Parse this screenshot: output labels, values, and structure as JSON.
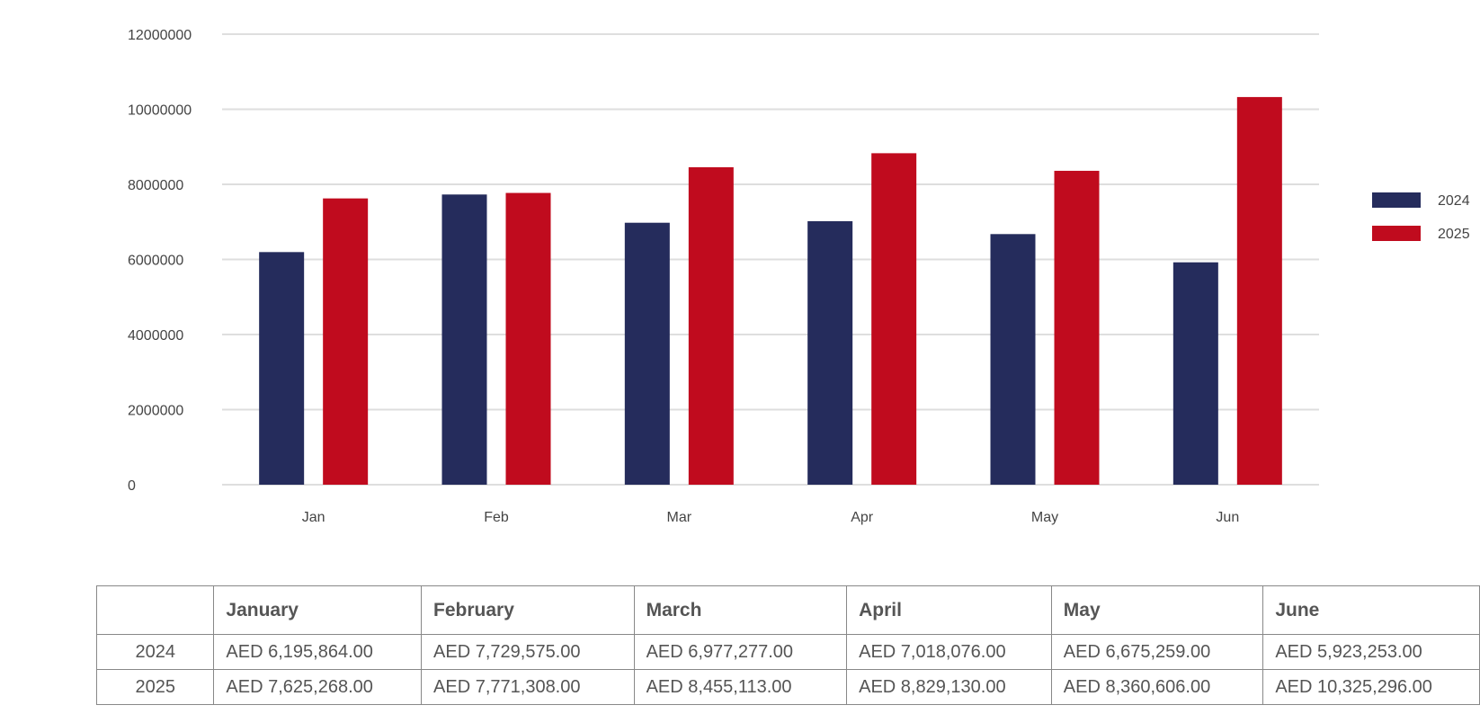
{
  "chart_data": {
    "type": "bar",
    "categories": [
      "Jan",
      "Feb",
      "Mar",
      "Apr",
      "May",
      "Jun"
    ],
    "series": [
      {
        "name": "2024",
        "color": "#252c5c",
        "values": [
          6195864,
          7729575,
          6977277,
          7018076,
          6675259,
          5923253
        ]
      },
      {
        "name": "2025",
        "color": "#c00b1e",
        "values": [
          7625268,
          7771308,
          8455113,
          8829130,
          8360606,
          10325296
        ]
      }
    ],
    "ylim": [
      0,
      12000000
    ],
    "yticks": [
      "0",
      "2000000",
      "4000000",
      "6000000",
      "8000000",
      "10000000",
      "12000000"
    ],
    "grid": true,
    "legend_position": "right",
    "title": "",
    "xlabel": "",
    "ylabel": ""
  },
  "table": {
    "corner": "",
    "headers": [
      "January",
      "February",
      "March",
      "April",
      "May",
      "June"
    ],
    "rows": [
      {
        "year": "2024",
        "cells": [
          "AED 6,195,864.00",
          "AED 7,729,575.00",
          "AED 6,977,277.00",
          "AED 7,018,076.00",
          "AED 6,675,259.00",
          "AED 5,923,253.00"
        ]
      },
      {
        "year": "2025",
        "cells": [
          "AED 7,625,268.00",
          "AED 7,771,308.00",
          "AED 8,455,113.00",
          "AED 8,829,130.00",
          "AED 8,360,606.00",
          "AED 10,325,296.00"
        ]
      }
    ]
  }
}
